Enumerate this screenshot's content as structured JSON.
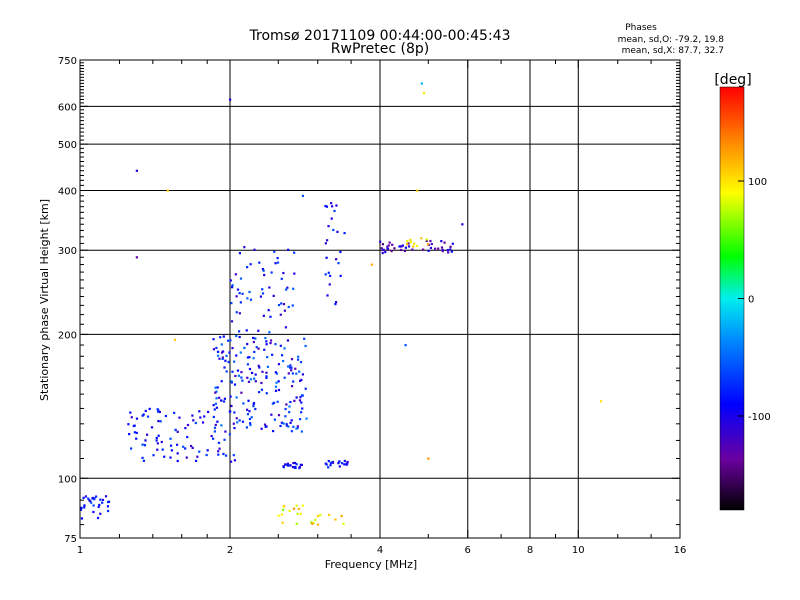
{
  "chart_data": {
    "type": "scatter",
    "title": "Tromsø 20171109 00:44:00-00:45:43",
    "subtitle": "RwPretec (8p)",
    "stats": {
      "heading": "Phases",
      "line1": "mean, sd,O: -79.2, 19.8",
      "line2": "mean, sd,X:  87.7, 32.7"
    },
    "xlabel": "Frequency [MHz]",
    "ylabel": "Stationary phase Virtual Height [km]",
    "x_scale": "log",
    "y_scale": "log",
    "xlim": [
      1,
      16
    ],
    "ylim": [
      75,
      750
    ],
    "x_ticks": [
      1,
      2,
      4,
      6,
      8,
      10,
      16
    ],
    "x_grid": [
      2,
      4,
      6,
      8,
      10
    ],
    "y_ticks": [
      75,
      100,
      200,
      300,
      400,
      500,
      600,
      750
    ],
    "y_grid": [
      100,
      200,
      300,
      400,
      500,
      600
    ],
    "grid": true,
    "colorbar": {
      "label": "[deg]",
      "range": [
        -180,
        180
      ],
      "ticks": [
        100,
        0,
        -100
      ]
    },
    "clusters": [
      {
        "name": "low-frequency bottom trace",
        "f": [
          1.0,
          1.15
        ],
        "h": [
          82,
          92
        ],
        "n": 30,
        "phase": [
          -110,
          -60
        ]
      },
      {
        "name": "rising O trace",
        "f": [
          1.25,
          2.1
        ],
        "h": [
          108,
          140
        ],
        "n": 90,
        "phase": [
          -120,
          -60
        ]
      },
      {
        "name": "F-region cloud",
        "f": [
          1.85,
          2.85
        ],
        "h": [
          125,
          200
        ],
        "n": 200,
        "phase": [
          -130,
          -40
        ]
      },
      {
        "name": "upper column",
        "f": [
          2.0,
          2.7
        ],
        "h": [
          200,
          310
        ],
        "n": 60,
        "phase": [
          -120,
          -50
        ]
      },
      {
        "name": "E-layer trace 2.6MHz",
        "f": [
          2.55,
          2.8
        ],
        "h": [
          105,
          108
        ],
        "n": 20,
        "phase": [
          -110,
          -70
        ]
      },
      {
        "name": "E-layer trace 3.3MHz",
        "f": [
          3.1,
          3.45
        ],
        "h": [
          105,
          109
        ],
        "n": 20,
        "phase": [
          -110,
          -70
        ]
      },
      {
        "name": "F trace 4-5.5MHz",
        "f": [
          4.0,
          5.6
        ],
        "h": [
          296,
          314
        ],
        "n": 45,
        "phase": [
          -150,
          -90
        ]
      },
      {
        "name": "X trace points",
        "f": [
          4.5,
          5.0
        ],
        "h": [
          300,
          320
        ],
        "n": 10,
        "phase": [
          80,
          120
        ]
      },
      {
        "name": "bottom scattered X",
        "f": [
          2.5,
          3.4
        ],
        "h": [
          80,
          88
        ],
        "n": 25,
        "phase": [
          60,
          130
        ]
      },
      {
        "name": "3.3MHz column",
        "f": [
          3.1,
          3.4
        ],
        "h": [
          220,
          380
        ],
        "n": 25,
        "phase": [
          -110,
          -60
        ]
      }
    ],
    "points": [
      {
        "f": 1.3,
        "h": 440,
        "phase": -100
      },
      {
        "f": 1.5,
        "h": 400,
        "phase": 110
      },
      {
        "f": 1.3,
        "h": 290,
        "phase": -130
      },
      {
        "f": 1.55,
        "h": 195,
        "phase": 110
      },
      {
        "f": 2.0,
        "h": 620,
        "phase": -100
      },
      {
        "f": 4.85,
        "h": 670,
        "phase": -20
      },
      {
        "f": 4.9,
        "h": 640,
        "phase": 100
      },
      {
        "f": 4.75,
        "h": 400,
        "phase": 110
      },
      {
        "f": 5.85,
        "h": 340,
        "phase": -100
      },
      {
        "f": 3.85,
        "h": 280,
        "phase": 120
      },
      {
        "f": 4.5,
        "h": 190,
        "phase": -60
      },
      {
        "f": 5.0,
        "h": 110,
        "phase": 130
      },
      {
        "f": 11.1,
        "h": 145,
        "phase": 100
      },
      {
        "f": 2.8,
        "h": 390,
        "phase": -60
      }
    ]
  }
}
